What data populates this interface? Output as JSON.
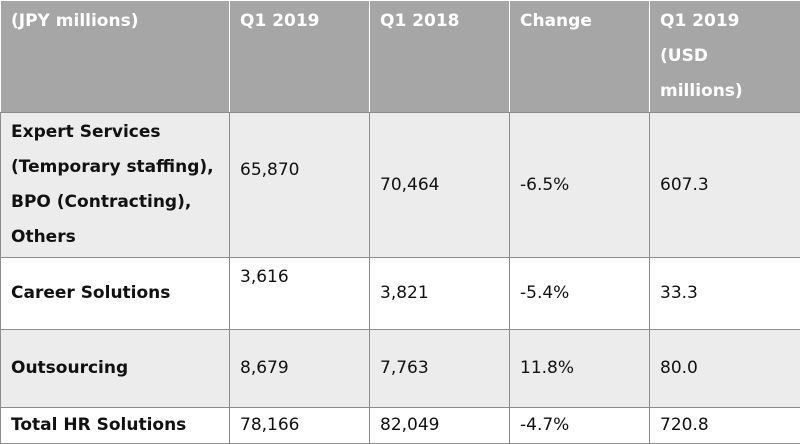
{
  "table": {
    "headers": [
      "(JPY millions)",
      "Q1 2019",
      "Q1 2018",
      "Change",
      "Q1 2019 (USD millions)"
    ],
    "rows": [
      {
        "label": "Expert Services (Temporary staffing), BPO (Contracting), Others",
        "q1_2019": "65,870",
        "q1_2018": "70,464",
        "change": "-6.5%",
        "q1_2019_usd": "607.3"
      },
      {
        "label": "Career Solutions",
        "q1_2019": "3,616",
        "q1_2018": "3,821",
        "change": "-5.4%",
        "q1_2019_usd": "33.3"
      },
      {
        "label": "Outsourcing",
        "q1_2019": "8,679",
        "q1_2018": "7,763",
        "change": "11.8%",
        "q1_2019_usd": "80.0"
      },
      {
        "label": "Total HR Solutions",
        "q1_2019": "78,166",
        "q1_2018": "82,049",
        "change": "-4.7%",
        "q1_2019_usd": "720.8"
      }
    ]
  }
}
